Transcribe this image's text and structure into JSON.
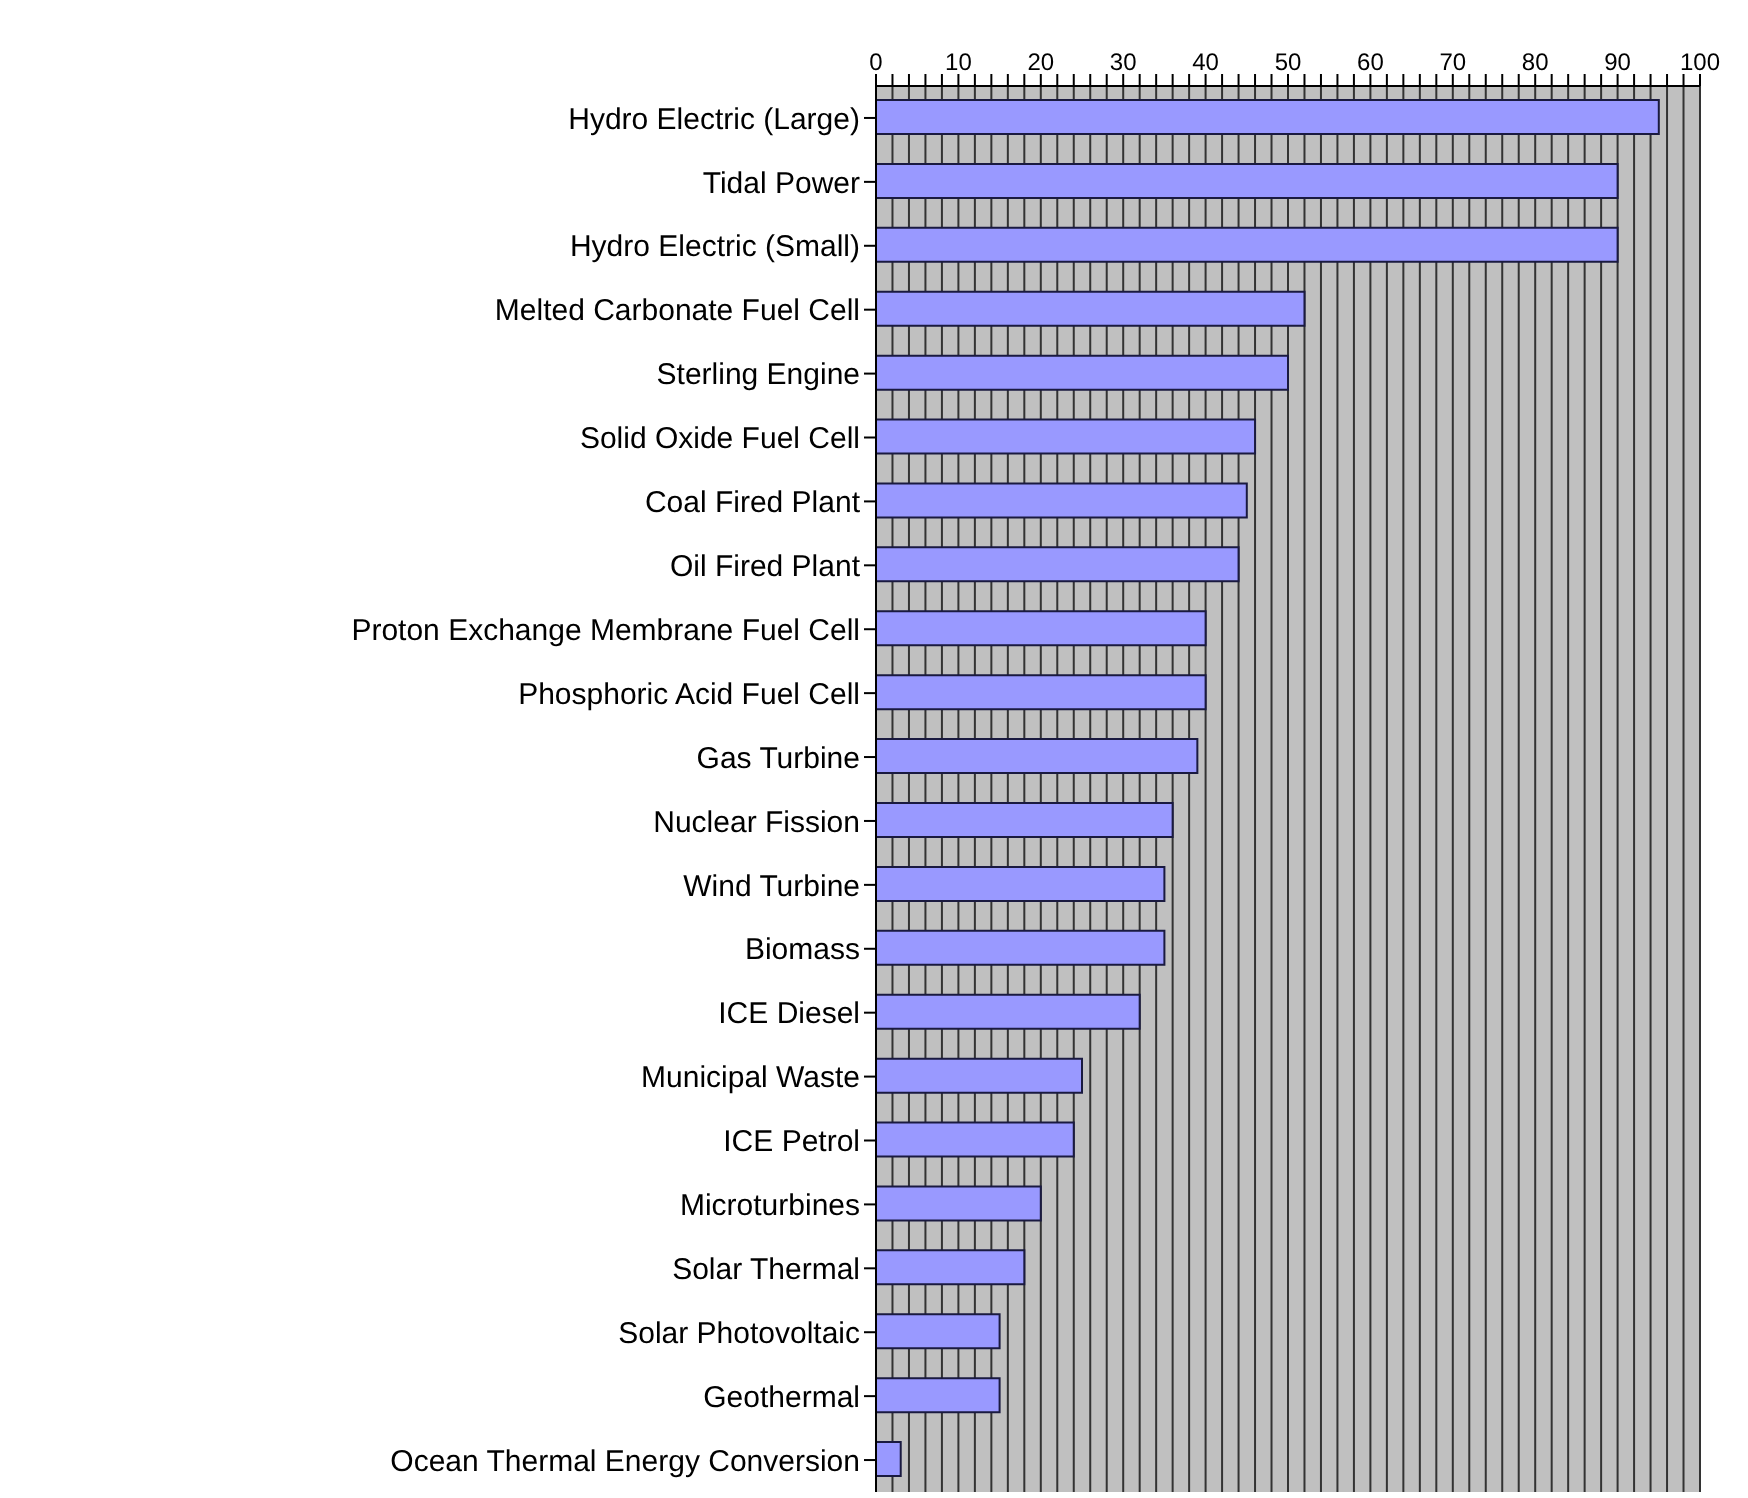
{
  "chart_data": {
    "type": "bar",
    "orientation": "horizontal",
    "categories": [
      "Hydro Electric (Large)",
      "Tidal Power",
      "Hydro Electric (Small)",
      "Melted Carbonate Fuel Cell",
      "Sterling Engine",
      "Solid Oxide Fuel Cell",
      "Coal Fired Plant",
      "Oil Fired Plant",
      "Proton Exchange Membrane Fuel Cell",
      "Phosphoric Acid Fuel Cell",
      "Gas Turbine",
      "Nuclear Fission",
      "Wind Turbine",
      "Biomass",
      "ICE Diesel",
      "Municipal Waste",
      "ICE Petrol",
      "Microturbines",
      "Solar Thermal",
      "Solar Photovoltaic",
      "Geothermal",
      "Ocean Thermal Energy Conversion"
    ],
    "values": [
      95,
      90,
      90,
      52,
      50,
      46,
      45,
      44,
      40,
      40,
      39,
      36,
      35,
      35,
      32,
      25,
      24,
      20,
      18,
      15,
      15,
      3
    ],
    "color": "#9999ff",
    "xlim": [
      0,
      100
    ],
    "xticks": [
      0,
      {
        "value": 2,
        "label": null
      },
      {
        "value": 4,
        "label": null
      },
      {
        "value": 6,
        "label": null
      },
      {
        "value": 8,
        "label": null
      },
      10,
      {
        "value": 12,
        "label": null
      },
      {
        "value": 14,
        "label": null
      },
      {
        "value": 16,
        "label": null
      },
      {
        "value": 18,
        "label": null
      },
      20,
      {
        "value": 22,
        "label": null
      },
      {
        "value": 24,
        "label": null
      },
      {
        "value": 26,
        "label": null
      },
      {
        "value": 28,
        "label": null
      },
      30,
      {
        "value": 32,
        "label": null
      },
      {
        "value": 34,
        "label": null
      },
      {
        "value": 36,
        "label": null
      },
      {
        "value": 38,
        "label": null
      },
      40,
      {
        "value": 42,
        "label": null
      },
      {
        "value": 44,
        "label": null
      },
      {
        "value": 46,
        "label": null
      },
      {
        "value": 48,
        "label": null
      },
      50,
      {
        "value": 52,
        "label": null
      },
      {
        "value": 54,
        "label": null
      },
      {
        "value": 56,
        "label": null
      },
      {
        "value": 58,
        "label": null
      },
      60,
      {
        "value": 62,
        "label": null
      },
      {
        "value": 64,
        "label": null
      },
      {
        "value": 66,
        "label": null
      },
      {
        "value": 68,
        "label": null
      },
      70,
      {
        "value": 72,
        "label": null
      },
      {
        "value": 74,
        "label": null
      },
      {
        "value": 76,
        "label": null
      },
      {
        "value": 78,
        "label": null
      },
      80,
      {
        "value": 82,
        "label": null
      },
      {
        "value": 84,
        "label": null
      },
      {
        "value": 86,
        "label": null
      },
      {
        "value": 88,
        "label": null
      },
      90,
      {
        "value": 92,
        "label": null
      },
      {
        "value": 94,
        "label": null
      },
      {
        "value": 96,
        "label": null
      },
      {
        "value": 98,
        "label": null
      },
      100
    ],
    "grid": "x",
    "legend": false
  }
}
